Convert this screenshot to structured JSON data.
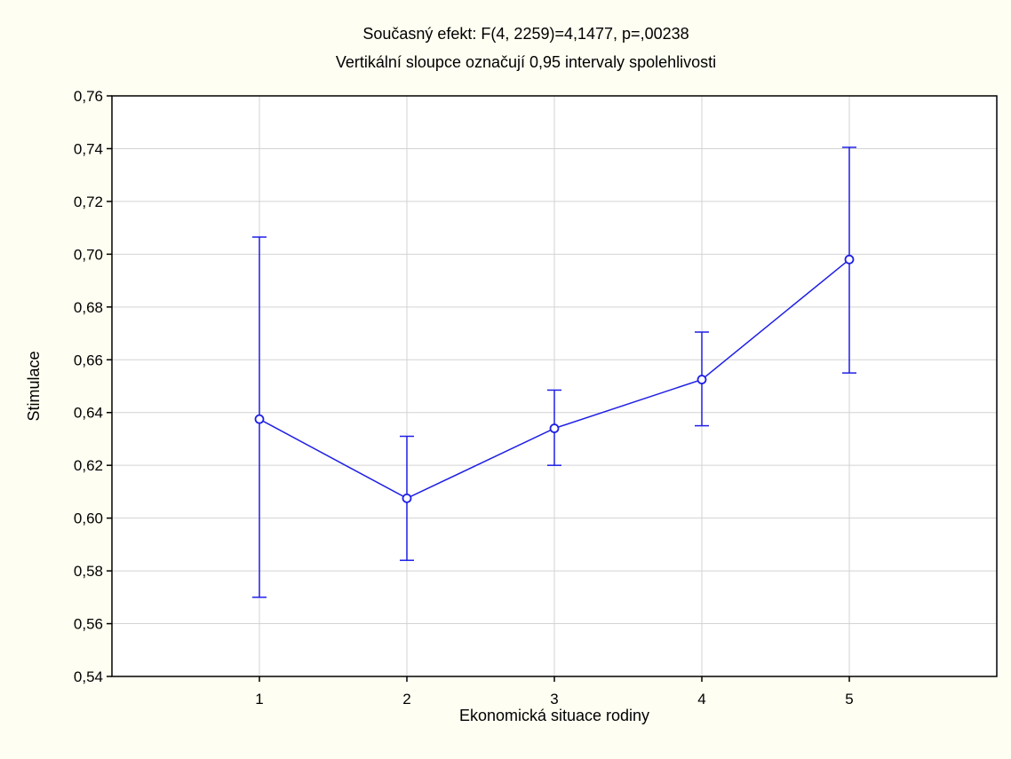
{
  "chart_data": {
    "type": "line",
    "title": "Současný efekt: F(4, 2259)=4,1477, p=,00238",
    "subtitle": "Vertikální sloupce označují 0,95 intervaly spolehlivosti",
    "xlabel": "Ekonomická situace rodiny",
    "ylabel": "Stimulace",
    "categories": [
      "1",
      "2",
      "3",
      "4",
      "5"
    ],
    "series": [
      {
        "values": [
          0.6375,
          0.6075,
          0.634,
          0.6525,
          0.698
        ],
        "ci_lower": [
          0.57,
          0.584,
          0.62,
          0.635,
          0.655
        ],
        "ci_upper": [
          0.7065,
          0.631,
          0.6485,
          0.6705,
          0.7405
        ]
      }
    ],
    "ylim": [
      0.54,
      0.76
    ],
    "yticks": [
      0.54,
      0.56,
      0.58,
      0.6,
      0.62,
      0.64,
      0.66,
      0.68,
      0.7,
      0.72,
      0.74,
      0.76
    ],
    "ytick_labels": [
      "0,54",
      "0,56",
      "0,58",
      "0,60",
      "0,62",
      "0,64",
      "0,66",
      "0,68",
      "0,70",
      "0,72",
      "0,74",
      "0,76"
    ],
    "grid": true,
    "colors": {
      "series": "#1f1fe6",
      "grid": "#d3d3d3",
      "plot_bg": "#ffffff",
      "page_bg": "#fffef2"
    }
  }
}
